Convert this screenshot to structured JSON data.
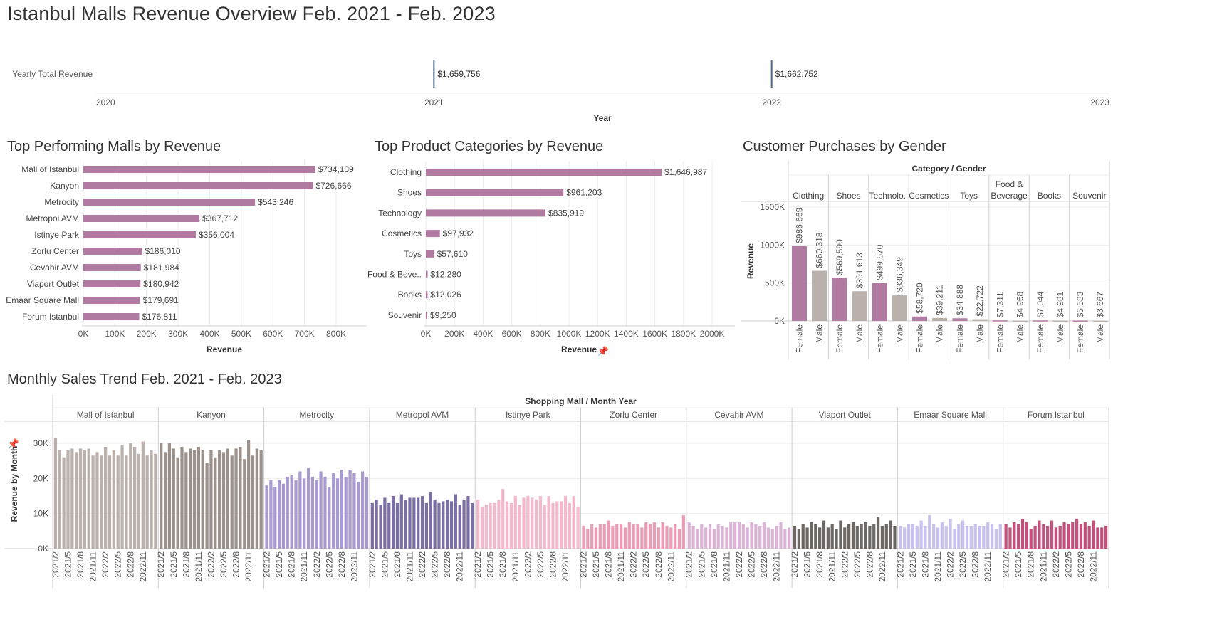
{
  "dashboard": {
    "title": "Istanbul Malls Revenue Overview Feb. 2021 - Feb. 2023"
  },
  "sections": {
    "malls": "Top Performing Malls by Revenue",
    "categories": "Top Product Categories by Revenue",
    "gender": "Customer Purchases by Gender",
    "trend": "Monthly Sales Trend Feb. 2021 - Feb. 2023"
  },
  "colors": {
    "bar": "#b07aa1",
    "female": "#b07aa1",
    "male": "#bab0ac",
    "grid": "#ececec",
    "divider": "#cfcfcf",
    "axis": "#555555",
    "timeline": "#4e6a8a",
    "trend": [
      "#bab0ac",
      "#9d918c",
      "#a99bd2",
      "#7b6fa6",
      "#f4b8cd",
      "#ec9cb5",
      "#dcb4d8",
      "#6e6864",
      "#c8c1ef",
      "#c2517c"
    ]
  },
  "chart_data": [
    {
      "id": "yearly",
      "type": "timeline",
      "row_label": "Yearly Total Revenue",
      "xlabel": "Year",
      "ticks": [
        "2020",
        "2021",
        "2022",
        "2023"
      ],
      "points": [
        {
          "year": 2021,
          "value": 1659756,
          "label": "$1,659,756"
        },
        {
          "year": 2022,
          "value": 1662752,
          "label": "$1,662,752"
        }
      ]
    },
    {
      "id": "malls",
      "type": "bar",
      "orientation": "horizontal",
      "categories": [
        "Mall of Istanbul",
        "Kanyon",
        "Metrocity",
        "Metropol AVM",
        "Istinye Park",
        "Zorlu Center",
        "Cevahir AVM",
        "Viaport Outlet",
        "Emaar Square Mall",
        "Forum Istanbul"
      ],
      "values": [
        734139,
        726666,
        543246,
        367712,
        356004,
        186010,
        181984,
        180942,
        179691,
        176811
      ],
      "labels": [
        "$734,139",
        "$726,666",
        "$543,246",
        "$367,712",
        "$356,004",
        "$186,010",
        "$181,984",
        "$180,942",
        "$179,691",
        "$176,811"
      ],
      "xlabel": "Revenue",
      "ticks": [
        "0K",
        "100K",
        "200K",
        "300K",
        "400K",
        "500K",
        "600K",
        "700K",
        "800K"
      ],
      "xlim": [
        0,
        800000
      ]
    },
    {
      "id": "categories",
      "type": "bar",
      "orientation": "horizontal",
      "categories": [
        "Clothing",
        "Shoes",
        "Technology",
        "Cosmetics",
        "Toys",
        "Food & Beve..",
        "Books",
        "Souvenir"
      ],
      "values": [
        1646987,
        961203,
        835919,
        97932,
        57610,
        12280,
        12026,
        9250
      ],
      "labels": [
        "$1,646,987",
        "$961,203",
        "$835,919",
        "$97,932",
        "$57,610",
        "$12,280",
        "$12,026",
        "$9,250"
      ],
      "xlabel": "Revenue",
      "ticks": [
        "0K",
        "200K",
        "400K",
        "600K",
        "800K",
        "1000K",
        "1200K",
        "1400K",
        "1600K",
        "1800K",
        "2000K"
      ],
      "xlim": [
        0,
        2000000
      ]
    },
    {
      "id": "gender",
      "type": "bar",
      "header": "Category / Gender",
      "ylabel": "Revenue",
      "yticks": [
        "0K",
        "500K",
        "1000K",
        "1500K"
      ],
      "ylim": [
        0,
        1500000
      ],
      "genders": [
        "Female",
        "Male"
      ],
      "groups": [
        {
          "category": [
            "Clothing"
          ],
          "values": [
            986669,
            660318
          ],
          "labels": [
            "$986,669",
            "$660,318"
          ]
        },
        {
          "category": [
            "Shoes"
          ],
          "values": [
            569590,
            391613
          ],
          "labels": [
            "$569,590",
            "$391,613"
          ]
        },
        {
          "category": [
            "Technolo.."
          ],
          "values": [
            499570,
            336349
          ],
          "labels": [
            "$499,570",
            "$336,349"
          ]
        },
        {
          "category": [
            "Cosmetics"
          ],
          "values": [
            58720,
            39211
          ],
          "labels": [
            "$58,720",
            "$39,211"
          ]
        },
        {
          "category": [
            "Toys"
          ],
          "values": [
            34888,
            22722
          ],
          "labels": [
            "$34,888",
            "$22,722"
          ]
        },
        {
          "category": [
            "Food &",
            "Beverage"
          ],
          "values": [
            7311,
            4968
          ],
          "labels": [
            "$7,311",
            "$4,968"
          ]
        },
        {
          "category": [
            "Books"
          ],
          "values": [
            7044,
            4981
          ],
          "labels": [
            "$7,044",
            "$4,981"
          ]
        },
        {
          "category": [
            "Souvenir"
          ],
          "values": [
            5583,
            3667
          ],
          "labels": [
            "$5,583",
            "$3,667"
          ]
        }
      ]
    },
    {
      "id": "trend",
      "type": "bar",
      "header": "Shopping Mall / Month Year",
      "ylabel": "Revenue by Month",
      "yticks": [
        "0K",
        "10K",
        "20K",
        "30K"
      ],
      "ylim": [
        0,
        33000
      ],
      "months": [
        "2021/2",
        "2021/3",
        "2021/4",
        "2021/5",
        "2021/6",
        "2021/7",
        "2021/8",
        "2021/9",
        "2021/10",
        "2021/11",
        "2021/12",
        "2022/1",
        "2022/2",
        "2022/3",
        "2022/4",
        "2022/5",
        "2022/6",
        "2022/7",
        "2022/8",
        "2022/9",
        "2022/10",
        "2022/11",
        "2022/12",
        "2023/1",
        "2023/2"
      ],
      "month_tick_labels": [
        "2021/2",
        "2021/5",
        "2021/8",
        "2021/11",
        "2022/2",
        "2022/5",
        "2022/8",
        "2022/11"
      ],
      "series": [
        {
          "name": "Mall of Istanbul",
          "values": [
            31500,
            28000,
            26000,
            28000,
            28500,
            27500,
            28500,
            28000,
            28500,
            26500,
            27500,
            26500,
            29000,
            26500,
            28000,
            26500,
            29500,
            26500,
            30000,
            29000,
            27000,
            30500,
            26500,
            28000,
            27000
          ]
        },
        {
          "name": "Kanyon",
          "values": [
            30000,
            27500,
            30000,
            28500,
            26000,
            29000,
            27500,
            28500,
            28000,
            29000,
            28000,
            24500,
            28000,
            26000,
            28000,
            27500,
            28500,
            26500,
            28500,
            29000,
            25500,
            31000,
            26500,
            28500,
            28000
          ]
        },
        {
          "name": "Metrocity",
          "values": [
            18000,
            19500,
            17500,
            19500,
            18500,
            20500,
            21000,
            19500,
            22000,
            20000,
            23000,
            20500,
            19500,
            22000,
            20500,
            17500,
            21500,
            20000,
            22500,
            20500,
            22500,
            21500,
            19000,
            22000,
            20500
          ]
        },
        {
          "name": "Metropol AVM",
          "values": [
            13000,
            14000,
            12500,
            14500,
            13000,
            15000,
            13000,
            15500,
            14000,
            14500,
            14500,
            14500,
            15000,
            13000,
            16000,
            14000,
            13000,
            13500,
            14000,
            13500,
            15500,
            12500,
            14000,
            15000,
            13000
          ]
        },
        {
          "name": "Istinye Park",
          "values": [
            14000,
            12000,
            12500,
            13000,
            13000,
            14000,
            17000,
            13500,
            13000,
            15000,
            12500,
            14500,
            15000,
            14500,
            14000,
            15000,
            12500,
            15000,
            13000,
            13500,
            13500,
            15000,
            13000,
            15000,
            12000
          ]
        },
        {
          "name": "Zorlu Center",
          "values": [
            6500,
            5500,
            7000,
            6000,
            7000,
            7000,
            8000,
            6500,
            7000,
            7000,
            6000,
            7500,
            7000,
            7000,
            6000,
            7500,
            7000,
            7500,
            6000,
            7500,
            6500,
            6000,
            7000,
            5500,
            9500
          ]
        },
        {
          "name": "Cevahir AVM",
          "values": [
            7500,
            6500,
            5500,
            7000,
            6000,
            7000,
            5500,
            7000,
            6500,
            6000,
            7500,
            7500,
            7500,
            7000,
            6000,
            7500,
            7000,
            6500,
            7500,
            6000,
            5500,
            6500,
            7500,
            5500,
            6000
          ]
        },
        {
          "name": "Viaport Outlet",
          "values": [
            6500,
            5500,
            7000,
            6000,
            7500,
            7000,
            6000,
            8000,
            6000,
            7000,
            5500,
            8000,
            6000,
            7000,
            7500,
            6500,
            7000,
            7500,
            6500,
            7000,
            9000,
            6500,
            7000,
            8000,
            6500
          ]
        },
        {
          "name": "Emaar Square Mall",
          "values": [
            6500,
            6000,
            7000,
            7000,
            6500,
            8000,
            6500,
            9500,
            7000,
            6000,
            7500,
            6500,
            8500,
            5500,
            7000,
            8000,
            6500,
            6500,
            7000,
            6500,
            6500,
            7500,
            7000,
            5500,
            7000
          ]
        },
        {
          "name": "Forum Istanbul",
          "values": [
            7000,
            6000,
            7500,
            7000,
            8500,
            7500,
            5500,
            6500,
            8000,
            7000,
            6500,
            8000,
            6000,
            6500,
            7500,
            7000,
            7500,
            8500,
            7000,
            7500,
            6500,
            8000,
            6000,
            6000,
            6500
          ]
        }
      ]
    }
  ]
}
